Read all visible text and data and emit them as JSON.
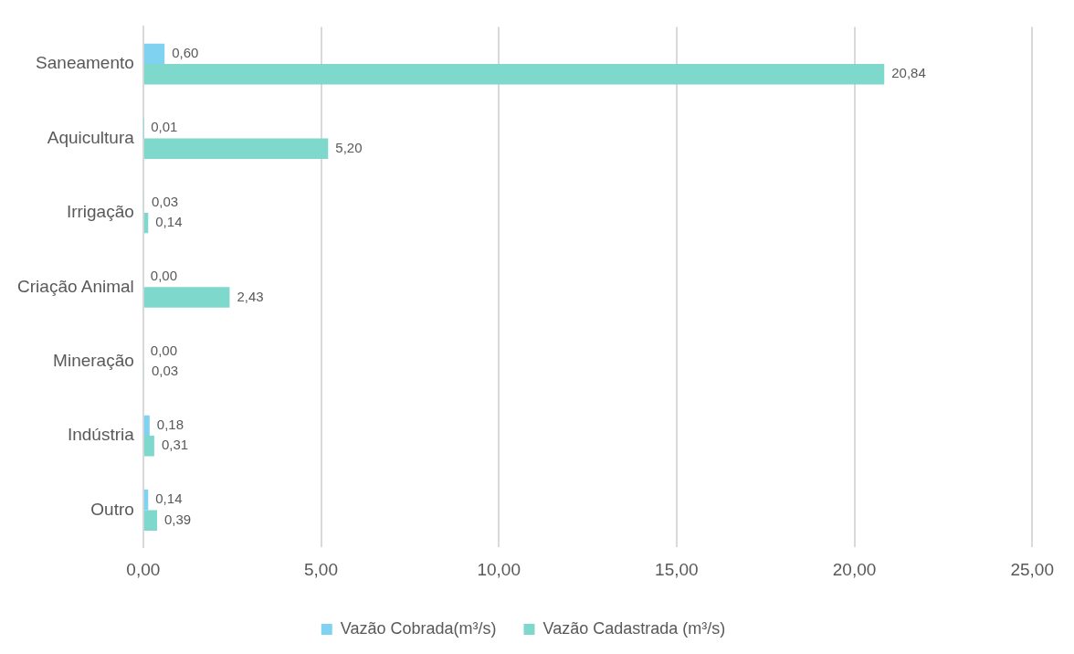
{
  "chart_data": {
    "type": "bar",
    "orientation": "horizontal",
    "categories": [
      "Saneamento",
      "Aquicultura",
      "Irrigação",
      "Criação Animal",
      "Mineração",
      "Indústria",
      "Outro"
    ],
    "series": [
      {
        "name": "Vazão Cobrada(m³/s)",
        "color": "#7fd3f0",
        "values": [
          0.6,
          0.01,
          0.03,
          0,
          0,
          0.18,
          0.14
        ],
        "value_labels": [
          "0,60",
          "0,01",
          "0,03",
          "0,00",
          "0,00",
          "0,18",
          "0,14"
        ]
      },
      {
        "name": "Vazão Cadastrada (m³/s)",
        "color": "#7fd8cc",
        "values": [
          20.84,
          5.2,
          0.14,
          2.43,
          0.03,
          0.31,
          0.39
        ],
        "value_labels": [
          "20,84",
          "5,20",
          "0,14",
          "2,43",
          "0,03",
          "0,31",
          "0,39"
        ]
      }
    ],
    "xlim": [
      0,
      25
    ],
    "xticks": [
      {
        "value": 0,
        "label": "0,00"
      },
      {
        "value": 5,
        "label": "5,00"
      },
      {
        "value": 10,
        "label": "10,00"
      },
      {
        "value": 15,
        "label": "15,00"
      },
      {
        "value": 20,
        "label": "20,00"
      },
      {
        "value": 25,
        "label": "25,00"
      }
    ],
    "grid": "x",
    "legend": "bottom"
  }
}
